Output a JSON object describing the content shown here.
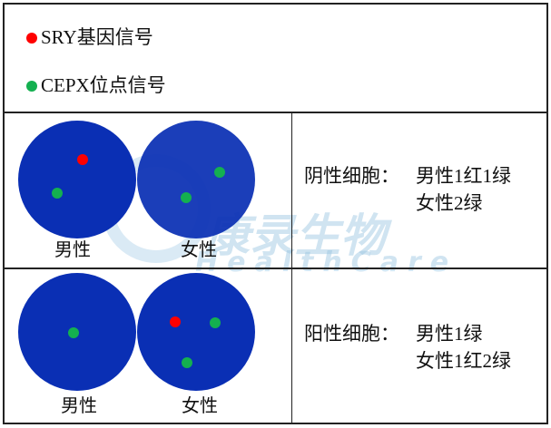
{
  "colors": {
    "cell": "#0a2fb4",
    "red": "#ff0000",
    "green": "#14b050"
  },
  "legend": [
    {
      "label": "SRY基因信号",
      "color": "red"
    },
    {
      "label": "CEPX位点信号",
      "color": "green"
    }
  ],
  "rows": [
    {
      "male_label": "男性",
      "female_label": "女性",
      "title": "阴性细胞：",
      "line1": "男性1红1绿",
      "line2": "女性2绿"
    },
    {
      "male_label": "男性",
      "female_label": "女性",
      "title": "阳性细胞：",
      "line1": "男性1绿",
      "line2": "女性1红2绿"
    }
  ],
  "watermark": {
    "cn": "康录生物",
    "en": "HealthCare"
  }
}
